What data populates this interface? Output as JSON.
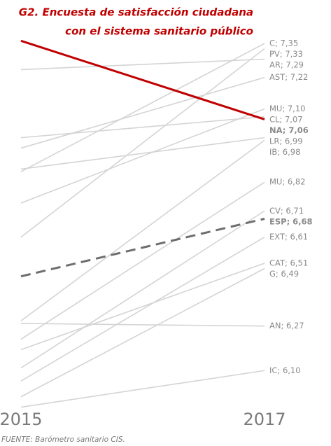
{
  "chart_data": {
    "type": "slope",
    "title": [
      "G2. Encuesta de satisfacción ciudadana",
      "con el sistema sanitario público"
    ],
    "source": "FUENTE: Barómetro sanitario CIS.",
    "categories": [
      "2015",
      "2017"
    ],
    "ylim": [
      5.9,
      7.5
    ],
    "series": [
      {
        "color": "#d4d4d4",
        "values": [
          6.86,
          7.35
        ],
        "value_labels": [
          null,
          "C; 7,35"
        ]
      },
      {
        "color": "#d4d4d4",
        "values": [
          6.61,
          7.33
        ],
        "value_labels": [
          null,
          "PV; 7,33"
        ]
      },
      {
        "color": "#d4d4d4",
        "values": [
          7.25,
          7.29
        ],
        "value_labels": [
          null,
          "AR; 7,29"
        ]
      },
      {
        "color": "#d4d4d4",
        "values": [
          6.95,
          7.22
        ],
        "value_labels": [
          null,
          "AST; 7,22"
        ]
      },
      {
        "color": "#d4d4d4",
        "values": [
          6.74,
          7.1
        ],
        "value_labels": [
          null,
          "MU; 7,10"
        ]
      },
      {
        "color": "#d4d4d4",
        "values": [
          6.99,
          7.07
        ],
        "value_labels": [
          null,
          "CL; 7,07"
        ]
      },
      {
        "color": "#c00000",
        "values": [
          7.36,
          7.06
        ],
        "value_labels": [
          null,
          "NA; 7,06"
        ]
      },
      {
        "color": "#d4d4d4",
        "values": [
          6.87,
          6.99
        ],
        "value_labels": [
          null,
          "LR; 6,99"
        ]
      },
      {
        "color": "#d4d4d4",
        "values": [
          6.29,
          6.98
        ],
        "value_labels": [
          null,
          "IB; 6,98"
        ]
      },
      {
        "color": "#d4d4d4",
        "values": [
          6.22,
          6.82
        ],
        "value_labels": [
          null,
          "MU; 6,82"
        ]
      },
      {
        "color": "#d4d4d4",
        "values": [
          6.11,
          6.71
        ],
        "value_labels": [
          null,
          "CV; 6,71"
        ]
      },
      {
        "color": "#6e6e6e",
        "dashed": true,
        "values": [
          6.46,
          6.68
        ],
        "value_labels": [
          null,
          "ESP; 6,68"
        ]
      },
      {
        "color": "#d4d4d4",
        "values": [
          6.06,
          6.61
        ],
        "value_labels": [
          null,
          "EXT; 6,61"
        ]
      },
      {
        "color": "#d4d4d4",
        "values": [
          6.18,
          6.51
        ],
        "value_labels": [
          null,
          "CAT; 6,51"
        ]
      },
      {
        "color": "#d4d4d4",
        "values": [
          6.0,
          6.49
        ],
        "value_labels": [
          null,
          "G; 6,49"
        ]
      },
      {
        "color": "#d4d4d4",
        "values": [
          6.28,
          6.27
        ],
        "value_labels": [
          null,
          "AN; 6,27"
        ]
      },
      {
        "color": "#d4d4d4",
        "values": [
          5.96,
          6.1
        ],
        "value_labels": [
          null,
          "IC; 6,10"
        ]
      }
    ]
  }
}
